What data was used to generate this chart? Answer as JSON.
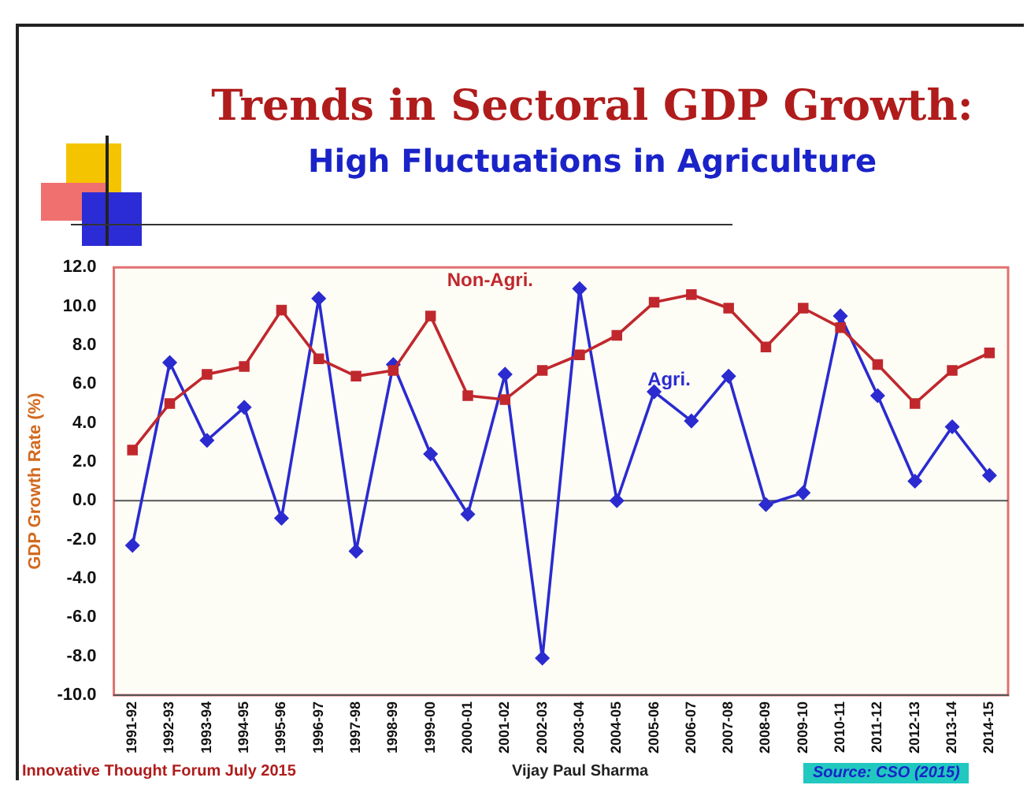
{
  "chart_data": {
    "type": "line",
    "title": "Trends in Sectoral GDP Growth:",
    "subtitle": "High Fluctuations in Agriculture",
    "ylabel": "GDP Growth Rate (%)",
    "categories": [
      "1991-92",
      "1992-93",
      "1993-94",
      "1994-95",
      "1995-96",
      "1996-97",
      "1997-98",
      "1998-99",
      "1999-00",
      "2000-01",
      "2001-02",
      "2002-03",
      "2003-04",
      "2004-05",
      "2005-06",
      "2006-07",
      "2007-08",
      "2008-09",
      "2009-10",
      "2010-11",
      "2011-12",
      "2012-13",
      "2013-14",
      "2014-15"
    ],
    "series": [
      {
        "name": "Non-Agri.",
        "color": "#c0282d",
        "marker": "square",
        "values": [
          2.6,
          5.0,
          6.5,
          6.9,
          9.8,
          7.3,
          6.4,
          6.7,
          9.5,
          5.4,
          5.2,
          6.7,
          7.5,
          8.5,
          10.2,
          10.6,
          9.9,
          7.9,
          9.9,
          8.9,
          7.0,
          5.0,
          6.7,
          7.6
        ]
      },
      {
        "name": "Agri.",
        "color": "#2b2bd0",
        "marker": "diamond",
        "values": [
          -2.3,
          7.1,
          3.1,
          4.8,
          -0.9,
          10.4,
          -2.6,
          7.0,
          2.4,
          -0.7,
          6.5,
          -8.1,
          10.9,
          0.0,
          5.6,
          4.1,
          6.4,
          -0.2,
          0.4,
          9.5,
          5.4,
          1.0,
          3.8,
          1.3
        ]
      }
    ],
    "ylim": [
      -10,
      12
    ],
    "yticks": [
      {
        "value": -10,
        "label": "-10.0"
      },
      {
        "value": -8,
        "label": "-8.0"
      },
      {
        "value": -6,
        "label": "-6.0"
      },
      {
        "value": -4,
        "label": "-4.0"
      },
      {
        "value": -2,
        "label": "-2.0"
      },
      {
        "value": 0,
        "label": "0.0"
      },
      {
        "value": 2,
        "label": "2.0"
      },
      {
        "value": 4,
        "label": "4.0"
      },
      {
        "value": 6,
        "label": "6.0"
      },
      {
        "value": 8,
        "label": "8.0"
      },
      {
        "value": 10,
        "label": "10.0"
      },
      {
        "value": 12,
        "label": "12.0"
      }
    ],
    "ref_lines": [
      {
        "axis": "y",
        "value": 0,
        "color": "#555555"
      }
    ],
    "grid": false,
    "legend": false,
    "line_style": "solid",
    "annotations": [
      "Innovative Thought Forum July 2015",
      "Vijay Paul Sharma",
      "Source: CSO (2015)"
    ]
  }
}
